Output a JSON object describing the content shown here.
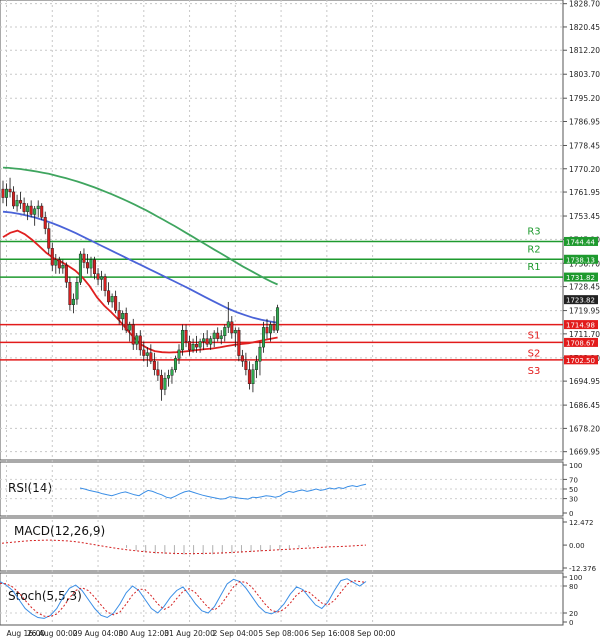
{
  "chart_data": {
    "type": "candlestick",
    "symbol": "Gold",
    "price_panel": {
      "ylim": [
        1667.0,
        1830.0
      ],
      "y_ticks": [
        "1828.70",
        "1820.45",
        "1812.20",
        "1803.70",
        "1795.20",
        "1786.95",
        "1778.45",
        "1770.20",
        "1761.95",
        "1753.45",
        "1745.20",
        "1736.70",
        "1728.45",
        "1719.95",
        "1711.70",
        "1703.20",
        "1694.95",
        "1686.45",
        "1678.20",
        "1669.95"
      ],
      "x_labels": [
        {
          "label": "Aug 16:00",
          "index": 1
        },
        {
          "label": "26 Aug 00:00",
          "index": 14
        },
        {
          "label": "29 Aug 04:00",
          "index": 27
        },
        {
          "label": "30 Aug 12:00",
          "index": 40
        },
        {
          "label": "31 Aug 20:00",
          "index": 53
        },
        {
          "label": "2 Sep 04:00",
          "index": 66
        },
        {
          "label": "5 Sep 08:00",
          "index": 79
        },
        {
          "label": "6 Sep 16:00",
          "index": 92
        },
        {
          "label": "8 Sep 00:00",
          "index": 105
        }
      ],
      "candles": [
        [
          1763,
          1766,
          1758,
          1760
        ],
        [
          1760,
          1765,
          1757,
          1763
        ],
        [
          1763,
          1767,
          1760,
          1762
        ],
        [
          1762,
          1764,
          1756,
          1757
        ],
        [
          1757,
          1761,
          1755,
          1759
        ],
        [
          1759,
          1762,
          1756,
          1758
        ],
        [
          1758,
          1760,
          1754,
          1755
        ],
        [
          1755,
          1758,
          1752,
          1757
        ],
        [
          1757,
          1759,
          1753,
          1754
        ],
        [
          1754,
          1757,
          1750,
          1756
        ],
        [
          1756,
          1759,
          1753,
          1757
        ],
        [
          1757,
          1758,
          1752,
          1753
        ],
        [
          1753,
          1755,
          1747,
          1749
        ],
        [
          1749,
          1751,
          1740,
          1742
        ],
        [
          1742,
          1744,
          1734,
          1736
        ],
        [
          1736,
          1740,
          1733,
          1738
        ],
        [
          1738,
          1739,
          1733,
          1735
        ],
        [
          1735,
          1738,
          1733,
          1736
        ],
        [
          1736,
          1737,
          1728,
          1730
        ],
        [
          1730,
          1732,
          1720,
          1722
        ],
        [
          1722,
          1726,
          1719,
          1724
        ],
        [
          1724,
          1732,
          1722,
          1730
        ],
        [
          1730,
          1741,
          1729,
          1740
        ],
        [
          1740,
          1742,
          1735,
          1737
        ],
        [
          1737,
          1740,
          1733,
          1735
        ],
        [
          1735,
          1739,
          1732,
          1738
        ],
        [
          1738,
          1739,
          1731,
          1733
        ],
        [
          1733,
          1735,
          1729,
          1731
        ],
        [
          1731,
          1734,
          1727,
          1732
        ],
        [
          1732,
          1733,
          1725,
          1727
        ],
        [
          1727,
          1730,
          1722,
          1723
        ],
        [
          1723,
          1726,
          1721,
          1725
        ],
        [
          1725,
          1727,
          1719,
          1720
        ],
        [
          1720,
          1723,
          1715,
          1717
        ],
        [
          1717,
          1720,
          1713,
          1719
        ],
        [
          1719,
          1721,
          1712,
          1713
        ],
        [
          1713,
          1716,
          1709,
          1715
        ],
        [
          1715,
          1717,
          1706,
          1708
        ],
        [
          1708,
          1712,
          1706,
          1711
        ],
        [
          1711,
          1713,
          1704,
          1706
        ],
        [
          1706,
          1709,
          1702,
          1704
        ],
        [
          1704,
          1707,
          1700,
          1705
        ],
        [
          1705,
          1708,
          1701,
          1702
        ],
        [
          1702,
          1705,
          1697,
          1699
        ],
        [
          1699,
          1702,
          1695,
          1697
        ],
        [
          1697,
          1699,
          1688,
          1692
        ],
        [
          1692,
          1698,
          1690,
          1696
        ],
        [
          1696,
          1699,
          1693,
          1697
        ],
        [
          1697,
          1700,
          1694,
          1699
        ],
        [
          1699,
          1704,
          1698,
          1703
        ],
        [
          1703,
          1708,
          1701,
          1706
        ],
        [
          1706,
          1715,
          1704,
          1713
        ],
        [
          1713,
          1715,
          1707,
          1709
        ],
        [
          1709,
          1711,
          1704,
          1706
        ],
        [
          1706,
          1710,
          1705,
          1708
        ],
        [
          1708,
          1711,
          1705,
          1707
        ],
        [
          1707,
          1710,
          1705,
          1709
        ],
        [
          1709,
          1712,
          1706,
          1710
        ],
        [
          1710,
          1713,
          1707,
          1708
        ],
        [
          1708,
          1711,
          1706,
          1710
        ],
        [
          1710,
          1713,
          1707,
          1712
        ],
        [
          1712,
          1714,
          1709,
          1710
        ],
        [
          1710,
          1713,
          1708,
          1711
        ],
        [
          1711,
          1715,
          1709,
          1714
        ],
        [
          1714,
          1723,
          1712,
          1716
        ],
        [
          1716,
          1718,
          1710,
          1712
        ],
        [
          1712,
          1714,
          1707,
          1713
        ],
        [
          1713,
          1714,
          1702,
          1704
        ],
        [
          1704,
          1706,
          1700,
          1702
        ],
        [
          1702,
          1705,
          1697,
          1699
        ],
        [
          1699,
          1702,
          1692,
          1694
        ],
        [
          1694,
          1701,
          1691,
          1699
        ],
        [
          1699,
          1704,
          1696,
          1702
        ],
        [
          1702,
          1709,
          1697,
          1707
        ],
        [
          1707,
          1716,
          1705,
          1714
        ],
        [
          1714,
          1717,
          1710,
          1712
        ],
        [
          1712,
          1716,
          1709,
          1715
        ],
        [
          1715,
          1718,
          1712,
          1713
        ],
        [
          1713,
          1722,
          1712,
          1721
        ]
      ],
      "moving_averages": [
        {
          "name": "MA slow",
          "color": "#3fa55f",
          "values": [
            1770.6,
            1770.5,
            1770.3,
            1770.1,
            1769.8,
            1769.5,
            1769.2,
            1768.8,
            1768.4,
            1767.9,
            1767.4,
            1766.9,
            1766.3,
            1765.7,
            1765.0,
            1764.3,
            1763.6,
            1762.8,
            1762.0,
            1761.2,
            1760.3,
            1759.4,
            1758.5,
            1757.5,
            1756.5,
            1755.5,
            1754.4,
            1753.3,
            1752.2,
            1751.0,
            1749.9,
            1748.7,
            1747.5,
            1746.3,
            1745.1,
            1743.9,
            1742.7,
            1741.5,
            1740.3,
            1739.1,
            1737.9,
            1736.7,
            1735.5,
            1734.4,
            1733.3,
            1732.2,
            1731.1,
            1730.1,
            1729.2
          ]
        },
        {
          "name": "MA mid",
          "color": "#4a63d8",
          "values": [
            1755.0,
            1754.7,
            1754.2,
            1753.6,
            1752.9,
            1752.0,
            1751.0,
            1749.9,
            1748.7,
            1747.4,
            1746.0,
            1744.6,
            1743.2,
            1741.8,
            1740.4,
            1739.0,
            1737.6,
            1736.2,
            1734.8,
            1733.4,
            1732.0,
            1730.6,
            1729.2,
            1727.8,
            1726.3,
            1724.8,
            1723.3,
            1721.9,
            1720.5,
            1719.3,
            1718.3,
            1717.4,
            1716.7,
            1716.1,
            1715.6
          ]
        },
        {
          "name": "MA fast",
          "color": "#e02020",
          "values": [
            1746.0,
            1747.5,
            1748.3,
            1747.0,
            1745.1,
            1742.8,
            1740.4,
            1738.5,
            1737.3,
            1735.8,
            1734.1,
            1731.7,
            1728.6,
            1724.7,
            1721.7,
            1719.3,
            1716.7,
            1713.7,
            1710.7,
            1708.1,
            1706.6,
            1705.6,
            1705.2,
            1705.1,
            1705.2,
            1705.4,
            1705.7,
            1706.0,
            1706.3,
            1706.5,
            1706.9,
            1707.4,
            1707.8,
            1708.1,
            1708.4,
            1708.9,
            1709.4,
            1709.9,
            1710.4
          ]
        }
      ],
      "resistance": [
        {
          "label": "R3",
          "value": 1744.44,
          "tag": "1744.44"
        },
        {
          "label": "R2",
          "value": 1738.13,
          "tag": "1738.13"
        },
        {
          "label": "R1",
          "value": 1731.82,
          "tag": "1731.82"
        }
      ],
      "support": [
        {
          "label": "S1",
          "value": 1714.98,
          "tag": "1714.98"
        },
        {
          "label": "S2",
          "value": 1708.67,
          "tag": "1708.67"
        },
        {
          "label": "S3",
          "value": 1702.5,
          "tag": "1702.50"
        }
      ],
      "current_price": {
        "value": 1723.82,
        "tag": "1723.82"
      },
      "colors": {
        "up": "#2fa84f",
        "down": "#d42020",
        "support": "#e21b1b",
        "resistance": "#1e9a2e"
      }
    },
    "rsi_panel": {
      "title": "RSI(14)",
      "ylim": [
        0,
        100
      ],
      "ticks": [
        "100",
        "70",
        "50",
        "30",
        "0"
      ],
      "values": [
        52,
        50,
        47,
        45,
        43,
        40,
        38,
        36,
        39,
        42,
        44,
        41,
        38,
        36,
        42,
        47,
        45,
        41,
        38,
        33,
        31,
        35,
        40,
        44,
        46,
        43,
        40,
        37,
        35,
        33,
        31,
        29,
        30,
        34,
        33,
        31,
        30,
        29,
        33,
        32,
        34,
        36,
        35,
        33,
        35,
        41,
        45,
        43,
        46,
        48,
        45,
        47,
        50,
        47,
        49,
        52,
        50,
        53,
        51,
        55,
        57,
        55,
        58,
        60
      ],
      "color": "#3a8ee6"
    },
    "macd_panel": {
      "title": "MACD(12,26,9)",
      "ticks": [
        "12.472",
        "0.00",
        "-12.376"
      ],
      "ylim": [
        -12.376,
        12.472
      ],
      "signal": [
        1.0,
        1.5,
        2.0,
        2.4,
        2.6,
        2.7,
        2.5,
        2.2,
        1.6,
        0.8,
        -0.1,
        -1.0,
        -1.8,
        -2.5,
        -3.1,
        -3.6,
        -4.0,
        -4.3,
        -4.5,
        -4.6,
        -4.6,
        -4.5,
        -4.4,
        -4.2,
        -4.0,
        -3.7,
        -3.4,
        -3.1,
        -2.8,
        -2.5,
        -2.2,
        -1.9,
        -1.6,
        -1.3,
        -1.0,
        -0.8,
        -0.6,
        -0.3,
        0.0
      ],
      "histogram": [
        0,
        0,
        0,
        0,
        0,
        0,
        0,
        0,
        0,
        0,
        0,
        0,
        0,
        -1.5,
        -3.0,
        -4.0,
        -4.6,
        -4.8,
        -5.0,
        -5.1,
        -5.2,
        -5.1,
        -5.0,
        -4.8,
        -4.5,
        -4.2,
        -3.8,
        -3.4,
        -3.0,
        -2.6,
        -2.0,
        -1.4,
        -0.8,
        -0.2,
        0,
        0,
        0,
        0,
        0
      ],
      "colors": {
        "signal": "#d42020",
        "histogram": "#b0b0b0"
      }
    },
    "stoch_panel": {
      "title": "Stoch(5,5,3)",
      "ticks": [
        "100",
        "80",
        "20",
        "0"
      ],
      "k": [
        90,
        82,
        70,
        50,
        30,
        18,
        10,
        8,
        15,
        30,
        55,
        75,
        82,
        70,
        50,
        30,
        15,
        10,
        20,
        40,
        65,
        80,
        70,
        50,
        30,
        20,
        35,
        55,
        70,
        78,
        60,
        40,
        25,
        20,
        35,
        60,
        85,
        95,
        90,
        75,
        55,
        35,
        22,
        18,
        25,
        40,
        62,
        78,
        72,
        55,
        38,
        30,
        45,
        70,
        92,
        96,
        88,
        80,
        90
      ],
      "d": [
        86,
        85,
        78,
        65,
        48,
        32,
        20,
        13,
        12,
        18,
        33,
        53,
        70,
        76,
        70,
        55,
        38,
        22,
        16,
        22,
        40,
        60,
        73,
        72,
        58,
        40,
        28,
        35,
        52,
        68,
        74,
        65,
        48,
        32,
        27,
        38,
        58,
        78,
        90,
        88,
        76,
        58,
        40,
        26,
        22,
        28,
        42,
        60,
        70,
        66,
        54,
        42,
        38,
        48,
        66,
        84,
        92,
        90,
        88
      ],
      "colors": {
        "k": "#3a8ee6",
        "d": "#d42020"
      }
    }
  }
}
